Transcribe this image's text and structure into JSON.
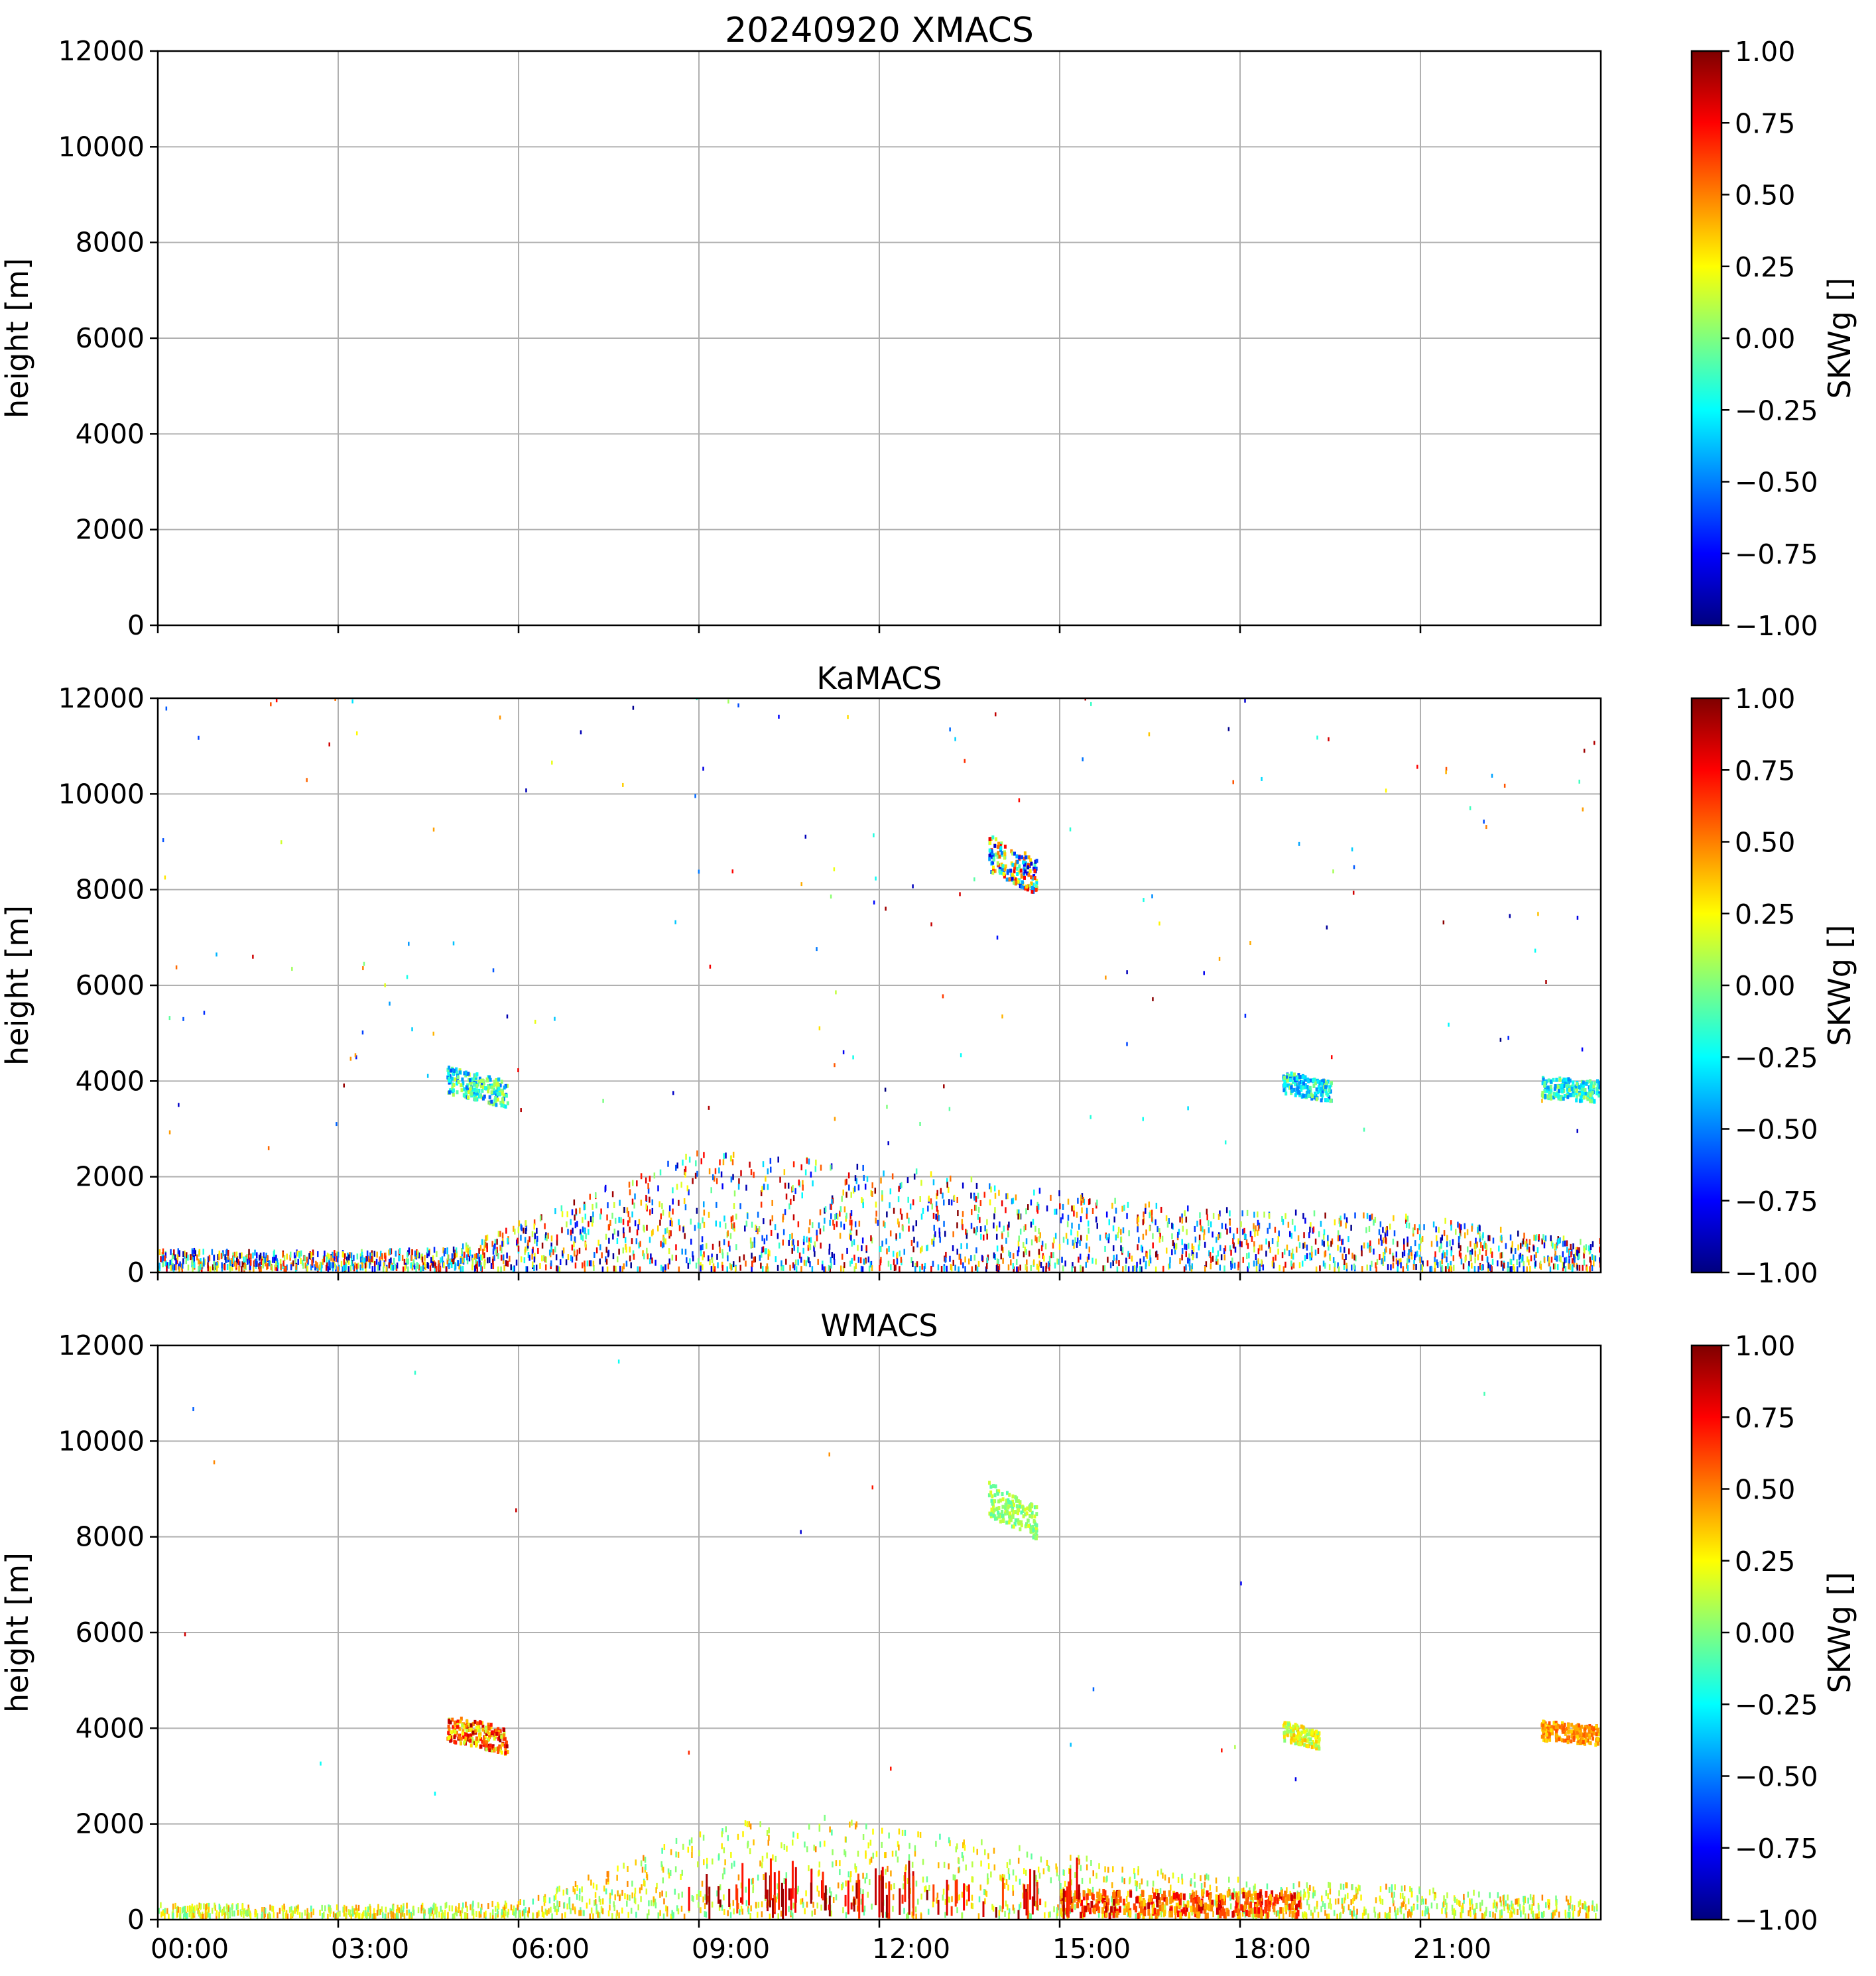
{
  "colors": {
    "grid": "#b0b0b0",
    "axis": "#000000",
    "colormap": [
      "#00007f",
      "#0000ff",
      "#007fff",
      "#00ffff",
      "#7fff7f",
      "#ffff00",
      "#ff7f00",
      "#ff0000",
      "#7f0000"
    ]
  },
  "chart_data": [
    {
      "type": "heatmap",
      "title": "20240920 XMACS",
      "ylabel": "height [m]",
      "xlabel": "",
      "xlim": [
        0,
        24
      ],
      "ylim": [
        0,
        12000
      ],
      "x_ticks": [
        0,
        3,
        6,
        9,
        12,
        15,
        18,
        21
      ],
      "x_tick_labels": [],
      "y_ticks": [
        0,
        2000,
        4000,
        6000,
        8000,
        10000,
        12000
      ],
      "y_tick_labels": [
        "0",
        "2000",
        "4000",
        "6000",
        "8000",
        "10000",
        "12000"
      ],
      "grid": true,
      "colorbar": {
        "label": "SKWg []",
        "vmin": -1.0,
        "vmax": 1.0,
        "ticks": [
          1.0,
          0.75,
          0.5,
          0.25,
          0.0,
          -0.25,
          -0.5,
          -0.75,
          -1.0
        ],
        "tick_labels": [
          "1.00",
          "0.75",
          "0.50",
          "0.25",
          "0.00",
          "−0.25",
          "−0.50",
          "−0.75",
          "−1.00"
        ]
      },
      "features": [],
      "noise": null
    },
    {
      "type": "heatmap",
      "title": "KaMACS",
      "ylabel": "height [m]",
      "xlabel": "",
      "xlim": [
        0,
        24
      ],
      "ylim": [
        0,
        12000
      ],
      "x_ticks": [
        0,
        3,
        6,
        9,
        12,
        15,
        18,
        21
      ],
      "x_tick_labels": [],
      "y_ticks": [
        0,
        2000,
        4000,
        6000,
        8000,
        10000,
        12000
      ],
      "y_tick_labels": [
        "0",
        "2000",
        "4000",
        "6000",
        "8000",
        "10000",
        "12000"
      ],
      "grid": true,
      "colorbar": {
        "label": "SKWg []",
        "vmin": -1.0,
        "vmax": 1.0,
        "ticks": [
          1.0,
          0.75,
          0.5,
          0.25,
          0.0,
          -0.25,
          -0.5,
          -0.75,
          -1.0
        ],
        "tick_labels": [
          "1.00",
          "0.75",
          "0.50",
          "0.25",
          "0.00",
          "−0.25",
          "−0.50",
          "−0.75",
          "−1.00"
        ]
      },
      "features": [
        {
          "name": "midlevel-cloud-morning",
          "t0": 4.8,
          "t1": 5.8,
          "h0": 3700,
          "h1": 4250,
          "tilt": -300,
          "vmin": -0.6,
          "vmax": 0.2
        },
        {
          "name": "upper-cloud-midday",
          "t0": 13.8,
          "t1": 14.6,
          "h0": 8350,
          "h1": 9100,
          "tilt": -500,
          "vmin": -0.9,
          "vmax": 0.8
        },
        {
          "name": "midlevel-cloud-evening",
          "t0": 18.7,
          "t1": 19.5,
          "h0": 3700,
          "h1": 4150,
          "tilt": -200,
          "vmin": -0.6,
          "vmax": 0.1
        },
        {
          "name": "midlevel-cloud-night",
          "t0": 23.0,
          "t1": 24.0,
          "h0": 3600,
          "h1": 4050,
          "tilt": -100,
          "vmin": -0.5,
          "vmax": 0.1
        }
      ],
      "noise": {
        "profile": [
          [
            0,
            400
          ],
          [
            3,
            350
          ],
          [
            5,
            450
          ],
          [
            7,
            1500
          ],
          [
            9,
            2500
          ],
          [
            11,
            2300
          ],
          [
            13,
            2000
          ],
          [
            15,
            1600
          ],
          [
            17,
            1300
          ],
          [
            19,
            1200
          ],
          [
            21,
            1100
          ],
          [
            23,
            700
          ],
          [
            24,
            600
          ]
        ],
        "count": 2600,
        "vmin": -1.0,
        "vmax": 1.0,
        "stray": 160
      }
    },
    {
      "type": "heatmap",
      "title": "WMACS",
      "ylabel": "height [m]",
      "xlabel": "",
      "xlim": [
        0,
        24
      ],
      "ylim": [
        0,
        12000
      ],
      "x_ticks": [
        0,
        3,
        6,
        9,
        12,
        15,
        18,
        21
      ],
      "x_tick_labels": [
        "00:00",
        "03:00",
        "06:00",
        "09:00",
        "12:00",
        "15:00",
        "18:00",
        "21:00"
      ],
      "y_ticks": [
        0,
        2000,
        4000,
        6000,
        8000,
        10000,
        12000
      ],
      "y_tick_labels": [
        "0",
        "2000",
        "4000",
        "6000",
        "8000",
        "10000",
        "12000"
      ],
      "grid": true,
      "colorbar": {
        "label": "SKWg []",
        "vmin": -1.0,
        "vmax": 1.0,
        "ticks": [
          1.0,
          0.75,
          0.5,
          0.25,
          0.0,
          -0.25,
          -0.5,
          -0.75,
          -1.0
        ],
        "tick_labels": [
          "1.00",
          "0.75",
          "0.50",
          "0.25",
          "0.00",
          "−0.25",
          "−0.50",
          "−0.75",
          "−1.00"
        ]
      },
      "features": [
        {
          "name": "midlevel-cloud-morning",
          "t0": 4.8,
          "t1": 5.8,
          "h0": 3700,
          "h1": 4250,
          "tilt": -300,
          "vmin": 0.1,
          "vmax": 0.95
        },
        {
          "name": "upper-cloud-midday",
          "t0": 13.8,
          "t1": 14.6,
          "h0": 8400,
          "h1": 9100,
          "tilt": -500,
          "vmin": -0.1,
          "vmax": 0.2
        },
        {
          "name": "midlevel-cloud-evening",
          "t0": 18.7,
          "t1": 19.3,
          "h0": 3700,
          "h1": 4100,
          "tilt": -200,
          "vmin": 0.0,
          "vmax": 0.4
        },
        {
          "name": "midlevel-cloud-night",
          "t0": 23.0,
          "t1": 24.0,
          "h0": 3700,
          "h1": 4100,
          "tilt": -100,
          "vmin": 0.3,
          "vmax": 0.6
        }
      ],
      "noise": {
        "profile": [
          [
            0,
            250
          ],
          [
            3,
            200
          ],
          [
            6,
            300
          ],
          [
            8,
            1200
          ],
          [
            9,
            1900
          ],
          [
            11,
            2100
          ],
          [
            13,
            1700
          ],
          [
            15,
            1300
          ],
          [
            17,
            900
          ],
          [
            19,
            700
          ],
          [
            21,
            600
          ],
          [
            23,
            400
          ],
          [
            24,
            350
          ]
        ],
        "count": 1700,
        "vmin": -0.1,
        "vmax": 0.5,
        "stray": 20,
        "streaks": {
          "t0": 8.8,
          "t1": 15.5,
          "hmax": 900,
          "count": 90,
          "vmin": 0.6,
          "vmax": 1.0
        },
        "base": {
          "t0": 15.0,
          "t1": 19.0,
          "hmax": 500,
          "count": 380,
          "vmin": 0.3,
          "vmax": 0.9
        }
      }
    }
  ]
}
